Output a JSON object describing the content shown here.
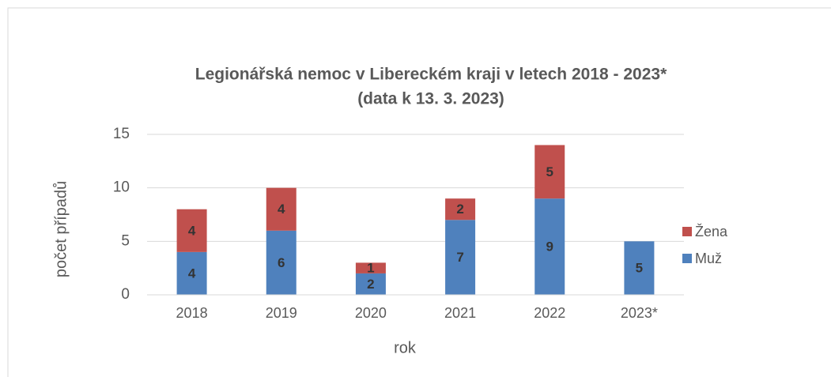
{
  "chart_data": {
    "type": "stacked_bar",
    "title": "Legionářská nemoc v Libereckém kraji v letech 2018 - 2023*",
    "subtitle": "(data k 13. 3. 2023)",
    "x_label": "rok",
    "y_label": "počet případů",
    "categories": [
      "2018",
      "2019",
      "2020",
      "2021",
      "2022",
      "2023*"
    ],
    "series": [
      {
        "name": "Muž",
        "color": "#4f81bd",
        "values": [
          4,
          6,
          2,
          7,
          9,
          5
        ]
      },
      {
        "name": "Žena",
        "color": "#c0504d",
        "values": [
          4,
          4,
          1,
          2,
          5,
          null
        ]
      }
    ],
    "ylim": [
      0,
      15
    ],
    "yticks": [
      0,
      5,
      10,
      15
    ],
    "grid": true,
    "legend": "right"
  }
}
